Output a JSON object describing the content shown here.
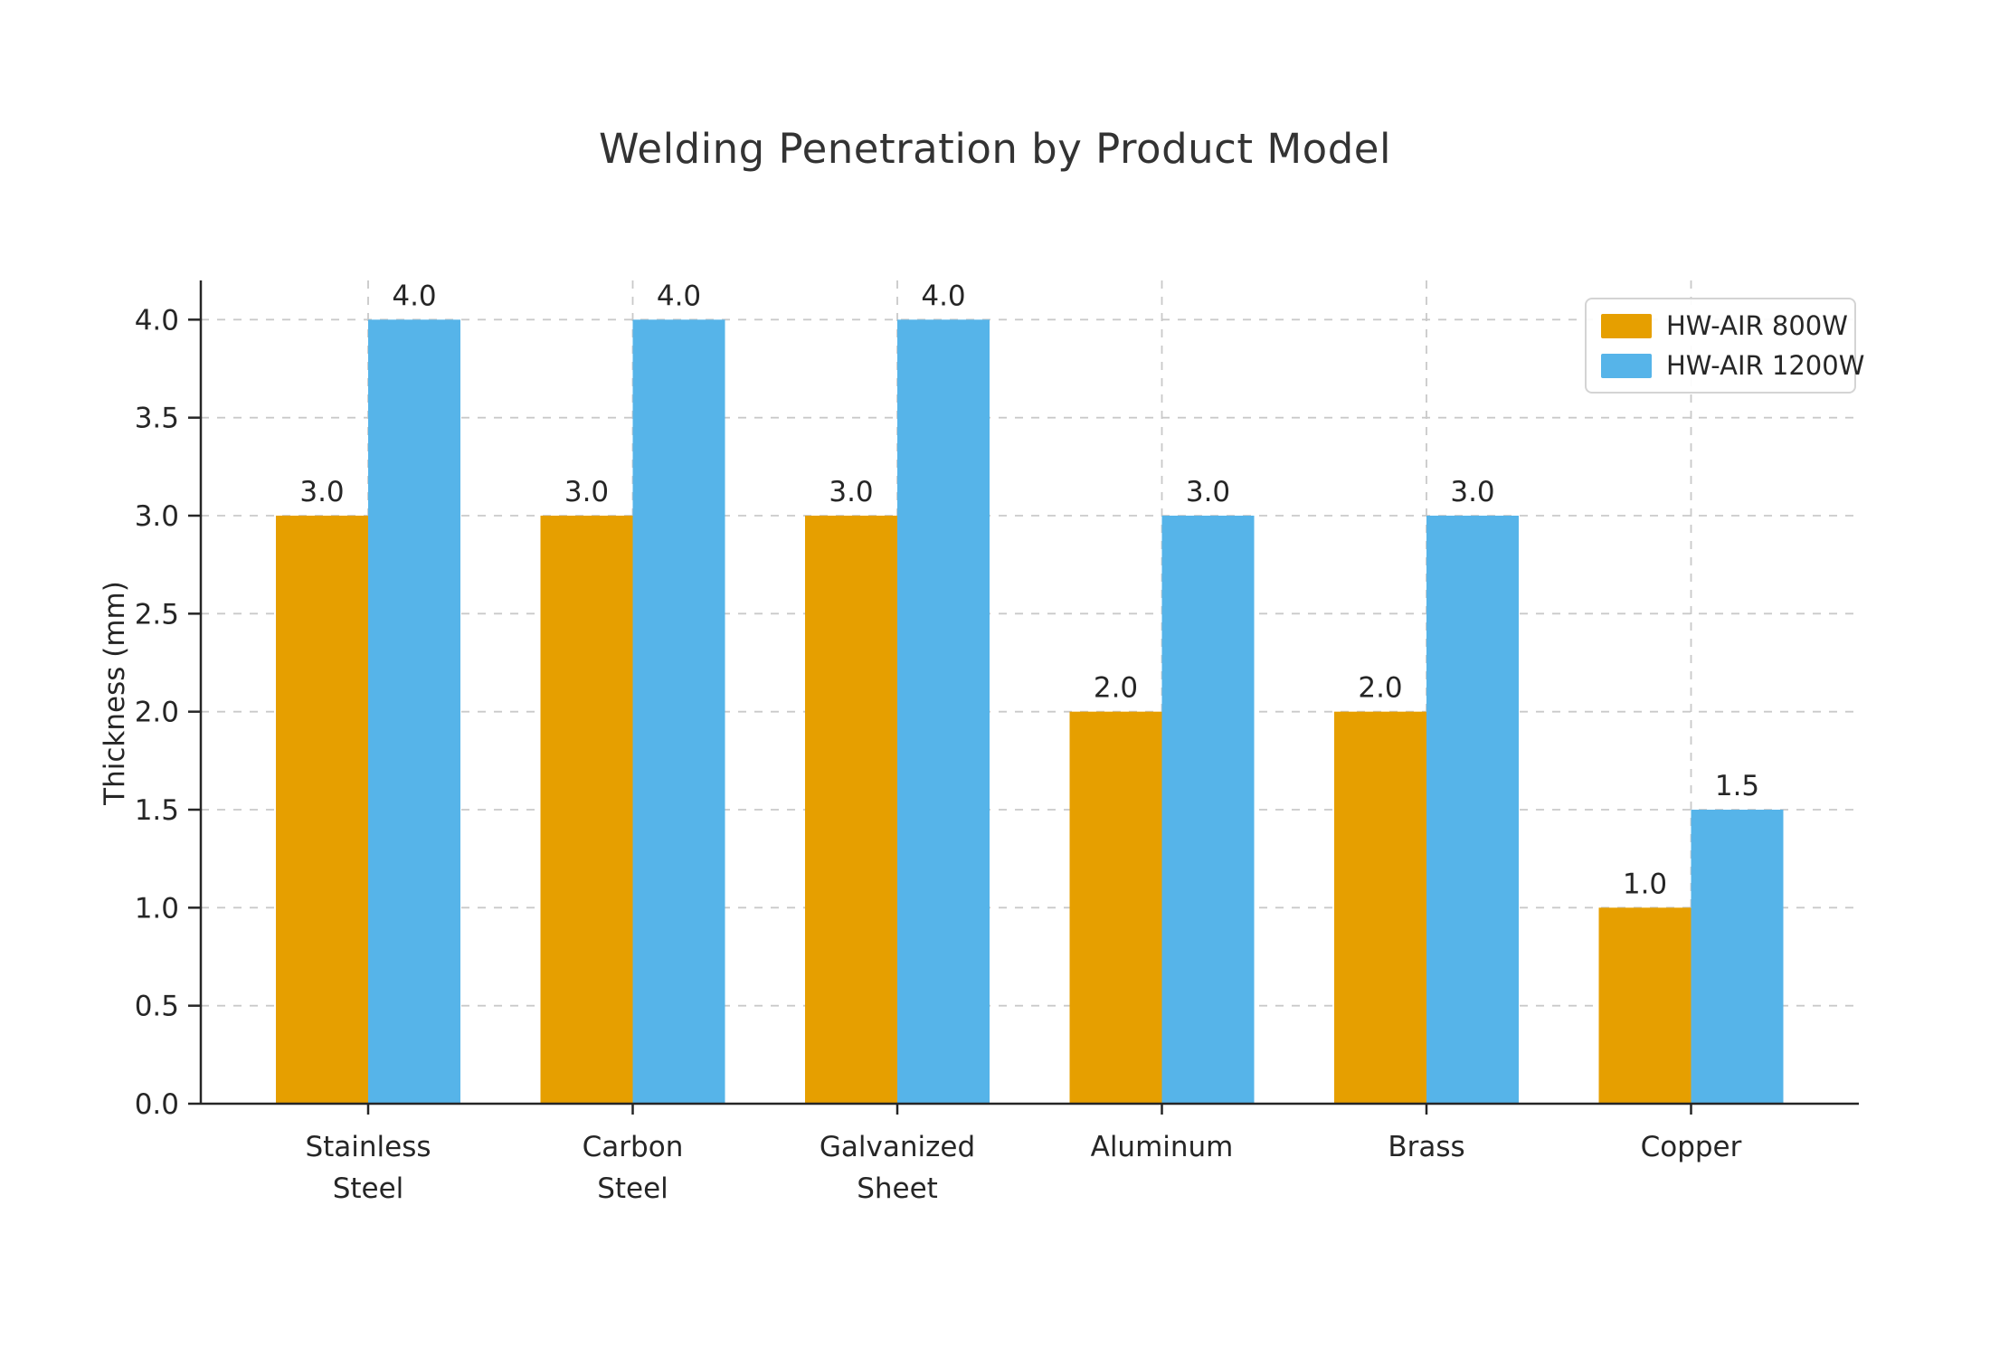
{
  "chart_data": {
    "type": "bar",
    "title": "Welding Penetration by Product Model",
    "xlabel": "",
    "ylabel": "Thickness (mm)",
    "categories": [
      "Stainless Steel",
      "Carbon Steel",
      "Galvanized Sheet",
      "Aluminum",
      "Brass",
      "Copper"
    ],
    "series": [
      {
        "name": "HW-AIR 800W",
        "color": "#E69F00",
        "values": [
          3.0,
          3.0,
          3.0,
          2.0,
          2.0,
          1.0
        ]
      },
      {
        "name": "HW-AIR 1200W",
        "color": "#56B4E9",
        "values": [
          4.0,
          4.0,
          4.0,
          3.0,
          3.0,
          1.5
        ]
      }
    ],
    "bar_value_labels": [
      [
        "3.0",
        "3.0",
        "3.0",
        "2.0",
        "2.0",
        "1.0"
      ],
      [
        "4.0",
        "4.0",
        "4.0",
        "3.0",
        "3.0",
        "1.5"
      ]
    ],
    "ylim": [
      0,
      4.2
    ],
    "yticks": [
      "0.0",
      "0.5",
      "1.0",
      "1.5",
      "2.0",
      "2.5",
      "3.0",
      "3.5",
      "4.0"
    ],
    "grid": {
      "horizontal": true,
      "vertical": true,
      "style": "dashed",
      "color": "#c9c9c9"
    },
    "legend_position": "upper-right",
    "colors": {
      "axis": "#262626",
      "text": "#262626",
      "title": "#333333",
      "background": "#ffffff"
    }
  }
}
